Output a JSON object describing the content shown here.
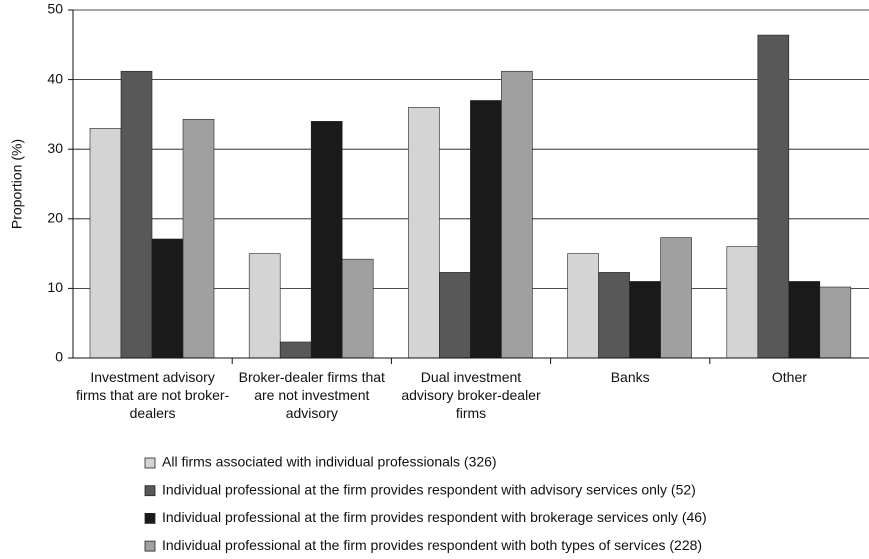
{
  "chart_data": {
    "type": "bar",
    "y_label": "Proportion (%)",
    "categories": [
      "Investment advisory firms that are not broker-dealers",
      "Broker-dealer firms that are not investment advisory",
      "Dual investment advisory broker-dealer firms",
      "Banks",
      "Other"
    ],
    "series": [
      {
        "name": "All firms associated with individual professionals (326)",
        "color": "#d4d4d4",
        "values": [
          33,
          15,
          36,
          15,
          16
        ]
      },
      {
        "name": "Individual professional at the firm provides respondent with advisory services only (52)",
        "color": "#585858",
        "values": [
          41.2,
          2.3,
          12.3,
          12.3,
          46.4
        ]
      },
      {
        "name": "Individual professional at the firm provides respondent with brokerage services only (46)",
        "color": "#1a1a1a",
        "values": [
          17.1,
          34,
          37,
          11,
          11
        ]
      },
      {
        "name": "Individual professional at the firm provides respondent with both types of services (228)",
        "color": "#a0a0a0",
        "values": [
          34.3,
          14.2,
          41.2,
          17.3,
          10.2
        ]
      }
    ],
    "ylim": [
      0,
      50
    ],
    "yticks": [
      0,
      10,
      20,
      30,
      40,
      50
    ],
    "grid": true
  }
}
